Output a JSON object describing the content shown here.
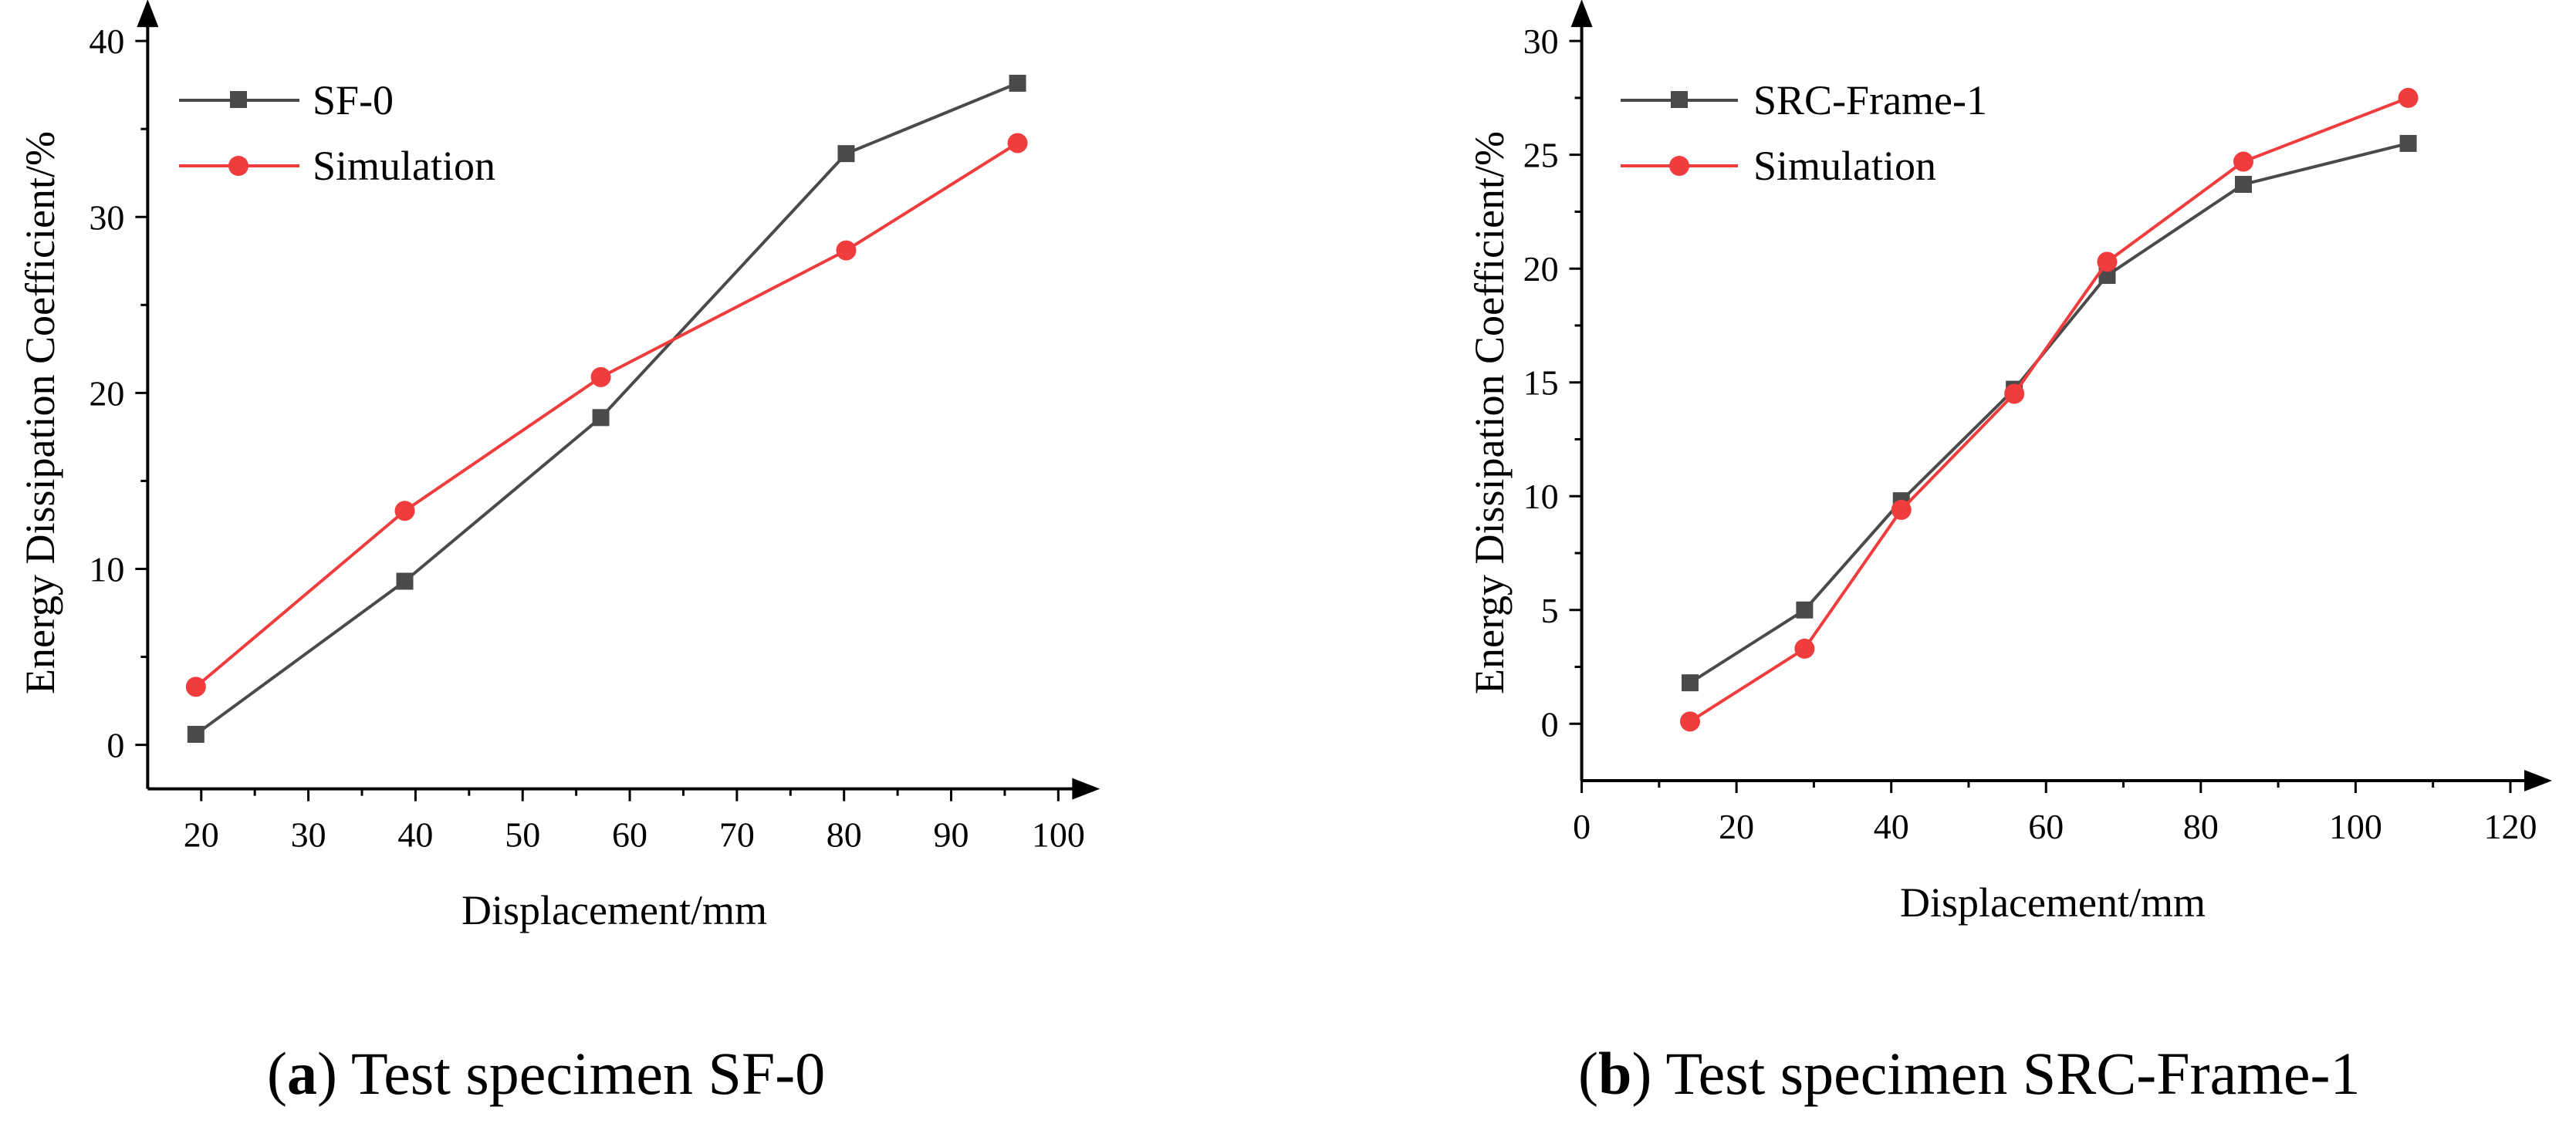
{
  "figure": {
    "colors": {
      "test": "#4a4a4a",
      "simulation": "#f03c3c",
      "axis": "#000000"
    },
    "captions": [
      {
        "open": "(",
        "letter": "a",
        "close": ")",
        "text": " Test specimen SF-0"
      },
      {
        "open": "(",
        "letter": "b",
        "close": ")",
        "text": " Test specimen SRC-Frame-1"
      }
    ]
  },
  "chart_data": [
    {
      "type": "line",
      "title": "",
      "xlabel": "Displacement/mm",
      "ylabel": "Energy Dissipation Coefficient/%",
      "xlim": [
        15,
        100
      ],
      "ylim": [
        -2.5,
        40
      ],
      "xticks": [
        20,
        30,
        40,
        50,
        60,
        70,
        80,
        90,
        100
      ],
      "yticks": [
        0,
        10,
        20,
        30,
        40
      ],
      "legend_position": "top-left",
      "series": [
        {
          "name": "SF-0",
          "marker": "square",
          "x": [
            19.5,
            39,
            57.3,
            80.2,
            96.2
          ],
          "y": [
            0.6,
            9.3,
            18.6,
            33.6,
            37.6
          ]
        },
        {
          "name": "Simulation",
          "marker": "circle",
          "x": [
            19.5,
            39,
            57.3,
            80.2,
            96.2
          ],
          "y": [
            3.3,
            13.3,
            20.9,
            28.1,
            34.2
          ]
        }
      ]
    },
    {
      "type": "line",
      "title": "",
      "xlabel": "Displacement/mm",
      "ylabel": "Energy Dissipation Coefficient/%",
      "xlim": [
        0,
        120
      ],
      "ylim": [
        -2.5,
        30
      ],
      "xticks": [
        0,
        20,
        40,
        60,
        80,
        100,
        120
      ],
      "yticks": [
        0,
        5,
        10,
        15,
        20,
        25,
        30
      ],
      "legend_position": "top-left",
      "series": [
        {
          "name": "SRC-Frame-1",
          "marker": "square",
          "x": [
            14,
            28.8,
            41.3,
            55.9,
            67.9,
            85.5,
            106.8
          ],
          "y": [
            1.8,
            5.0,
            9.8,
            14.7,
            19.7,
            23.7,
            25.5
          ]
        },
        {
          "name": "Simulation",
          "marker": "circle",
          "x": [
            14,
            28.8,
            41.3,
            55.9,
            67.9,
            85.5,
            106.8
          ],
          "y": [
            0.1,
            3.3,
            9.4,
            14.5,
            20.3,
            24.7,
            27.5
          ]
        }
      ]
    }
  ]
}
